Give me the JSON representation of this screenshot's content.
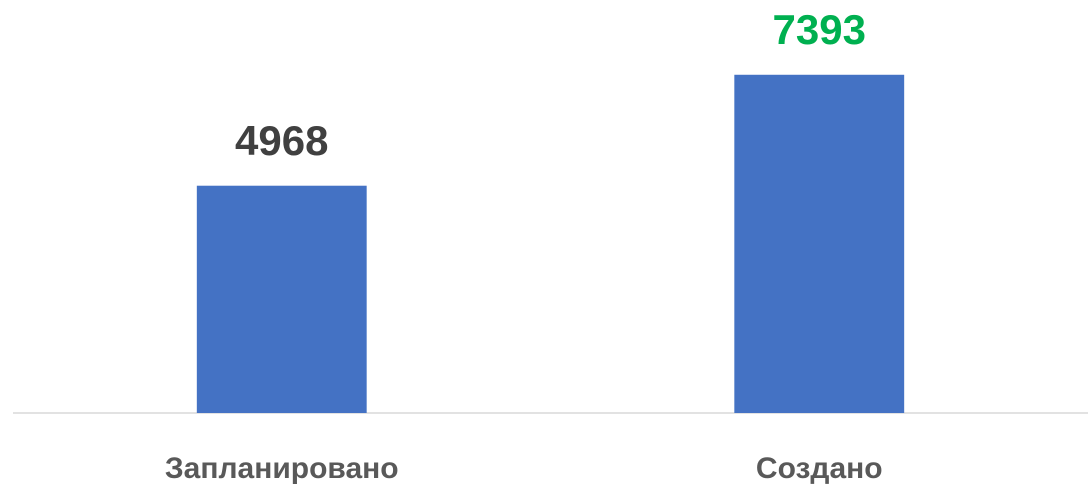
{
  "chart_data": {
    "type": "bar",
    "categories": [
      "Запланировано",
      "Создано"
    ],
    "values": [
      4968,
      7393
    ],
    "color": "#4472c4",
    "label_colors": [
      "#404040",
      "#00b050"
    ],
    "ylim": [
      0,
      8000
    ]
  }
}
